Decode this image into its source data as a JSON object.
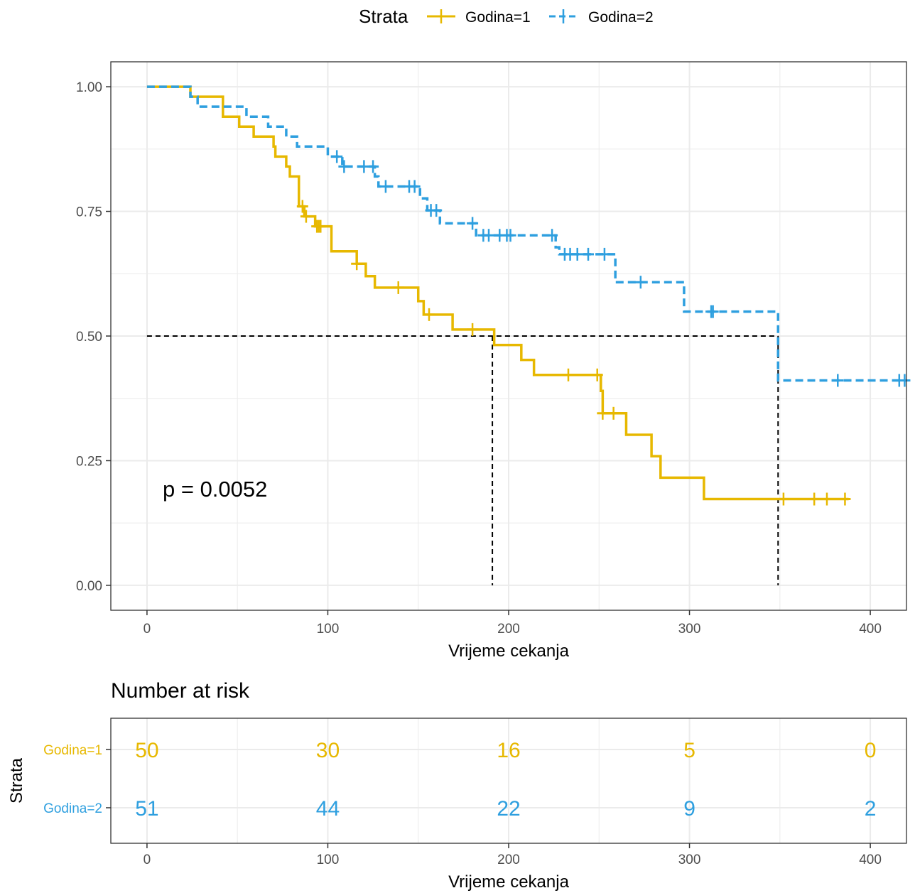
{
  "legend": {
    "title": "Strata",
    "items": [
      "Godina=1",
      "Godina=2"
    ]
  },
  "colors": {
    "godina1": "#E7B800",
    "godina2": "#2E9FDF",
    "median_line": "#000000",
    "grid": "#EBEBEB",
    "panel_border": "#333333"
  },
  "chart_data": [
    {
      "type": "line",
      "subtype": "kaplan-meier",
      "xlabel": "Vrijeme cekanja",
      "ylabel": "",
      "xlim": [
        -20,
        420
      ],
      "ylim": [
        -0.05,
        1.05
      ],
      "x_ticks": [
        0,
        100,
        200,
        300,
        400
      ],
      "x_tick_labels": [
        "0",
        "100",
        "200",
        "300",
        "400"
      ],
      "y_ticks": [
        0,
        0.25,
        0.5,
        0.75,
        1
      ],
      "y_tick_labels": [
        "0.00",
        "0.25",
        "0.50",
        "0.75",
        "1.00"
      ],
      "grid": true,
      "legend_position": "top",
      "annotation": "p = 0.0052",
      "median_survival": [
        191,
        349
      ],
      "series": [
        {
          "name": "Godina=1",
          "color": "#E7B800",
          "dashed": false,
          "steps": [
            [
              0,
              1.0
            ],
            [
              24,
              0.98
            ],
            [
              42,
              0.94
            ],
            [
              51,
              0.92
            ],
            [
              59,
              0.9
            ],
            [
              70,
              0.88
            ],
            [
              71,
              0.86
            ],
            [
              77,
              0.84
            ],
            [
              79,
              0.82
            ],
            [
              84,
              0.76
            ],
            [
              87,
              0.74
            ],
            [
              93,
              0.72
            ],
            [
              102,
              0.67
            ],
            [
              116,
              0.645
            ],
            [
              121,
              0.62
            ],
            [
              126,
              0.597
            ],
            [
              150,
              0.57
            ],
            [
              153,
              0.543
            ],
            [
              169,
              0.513
            ],
            [
              192,
              0.482
            ],
            [
              207,
              0.452
            ],
            [
              214,
              0.422
            ],
            [
              251,
              0.39
            ],
            [
              252,
              0.345
            ],
            [
              265,
              0.302
            ],
            [
              279,
              0.259
            ],
            [
              284,
              0.216
            ],
            [
              308,
              0.173
            ],
            [
              388,
              0.173
            ]
          ],
          "censor_times": [
            86,
            88,
            94,
            95,
            96,
            116,
            139,
            156,
            180,
            233,
            249,
            252,
            258,
            352,
            369,
            376,
            386
          ]
        },
        {
          "name": "Godina=2",
          "color": "#2E9FDF",
          "dashed": true,
          "steps": [
            [
              0,
              1.0
            ],
            [
              24,
              0.98
            ],
            [
              28,
              0.96
            ],
            [
              55,
              0.94
            ],
            [
              67,
              0.92
            ],
            [
              77,
              0.9
            ],
            [
              83,
              0.88
            ],
            [
              100,
              0.86
            ],
            [
              108,
              0.84
            ],
            [
              126,
              0.82
            ],
            [
              128,
              0.8
            ],
            [
              151,
              0.776
            ],
            [
              155,
              0.752
            ],
            [
              162,
              0.726
            ],
            [
              182,
              0.702
            ],
            [
              226,
              0.678
            ],
            [
              228,
              0.664
            ],
            [
              259,
              0.608
            ],
            [
              297,
              0.549
            ],
            [
              349,
              0.411
            ],
            [
              420,
              0.411
            ]
          ],
          "censor_times": [
            105,
            109,
            120,
            125,
            132,
            145,
            148,
            157,
            160,
            180,
            186,
            189,
            195,
            199,
            201,
            224,
            231,
            234,
            238,
            244,
            253,
            273,
            312,
            313,
            382,
            416,
            419
          ]
        }
      ]
    },
    {
      "type": "table",
      "title": "Number at risk",
      "xlabel": "Vrijeme cekanja",
      "ylabel": "Strata",
      "xlim": [
        -20,
        420
      ],
      "x_ticks": [
        0,
        100,
        200,
        300,
        400
      ],
      "x_tick_labels": [
        "0",
        "100",
        "200",
        "300",
        "400"
      ],
      "rows": [
        {
          "name": "Godina=1",
          "color": "#E7B800",
          "values": [
            50,
            30,
            16,
            5,
            0
          ]
        },
        {
          "name": "Godina=2",
          "color": "#2E9FDF",
          "values": [
            51,
            44,
            22,
            9,
            2
          ]
        }
      ]
    }
  ]
}
